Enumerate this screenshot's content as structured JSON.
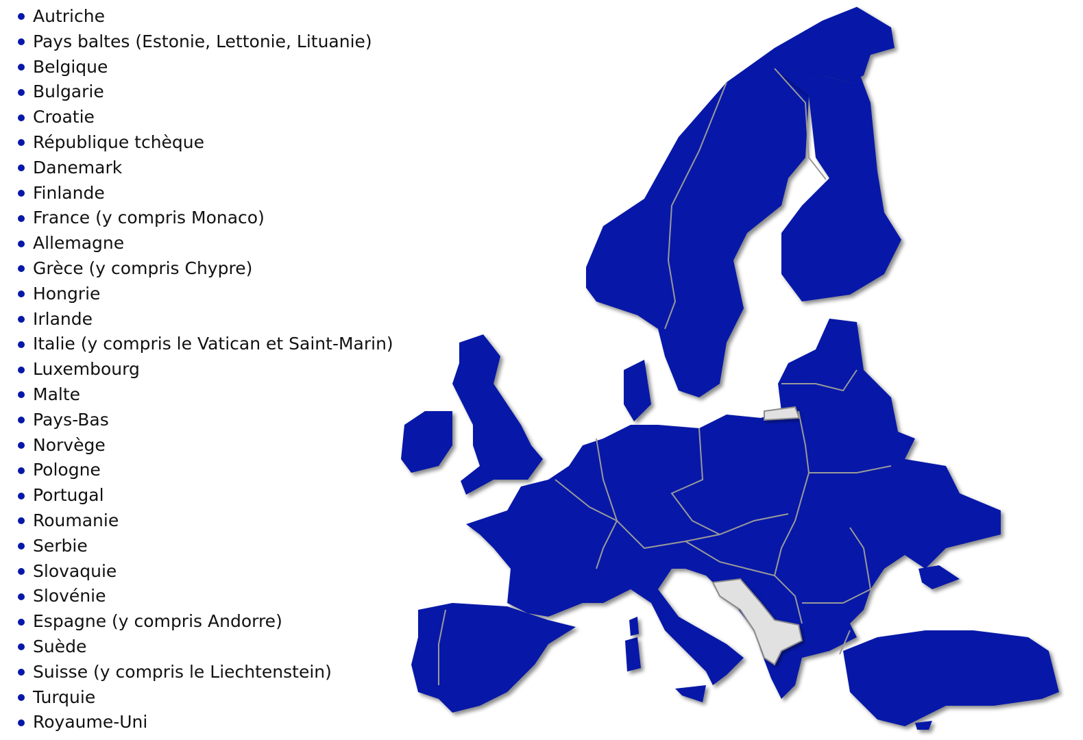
{
  "colors": {
    "included": "#0718a8",
    "excluded": "#e1e1e1",
    "border": "#9a9a9a"
  },
  "countries": [
    "Autriche",
    "Pays baltes (Estonie, Lettonie, Lituanie)",
    "Belgique",
    "Bulgarie",
    "Croatie",
    "République tchèque",
    "Danemark",
    "Finlande",
    "France (y compris Monaco)",
    "Allemagne",
    "Grèce (y compris Chypre)",
    "Hongrie",
    "Irlande",
    "Italie (y compris le Vatican et Saint-Marin)",
    "Luxembourg",
    "Malte",
    "Pays-Bas",
    "Norvège",
    "Pologne",
    "Portugal",
    "Roumanie",
    "Serbie",
    "Slovaquie",
    "Slovénie",
    "Espagne (y compris Andorre)",
    "Suède",
    "Suisse (y compris le Liechtenstein)",
    "Turquie",
    "Royaume-Uni"
  ]
}
